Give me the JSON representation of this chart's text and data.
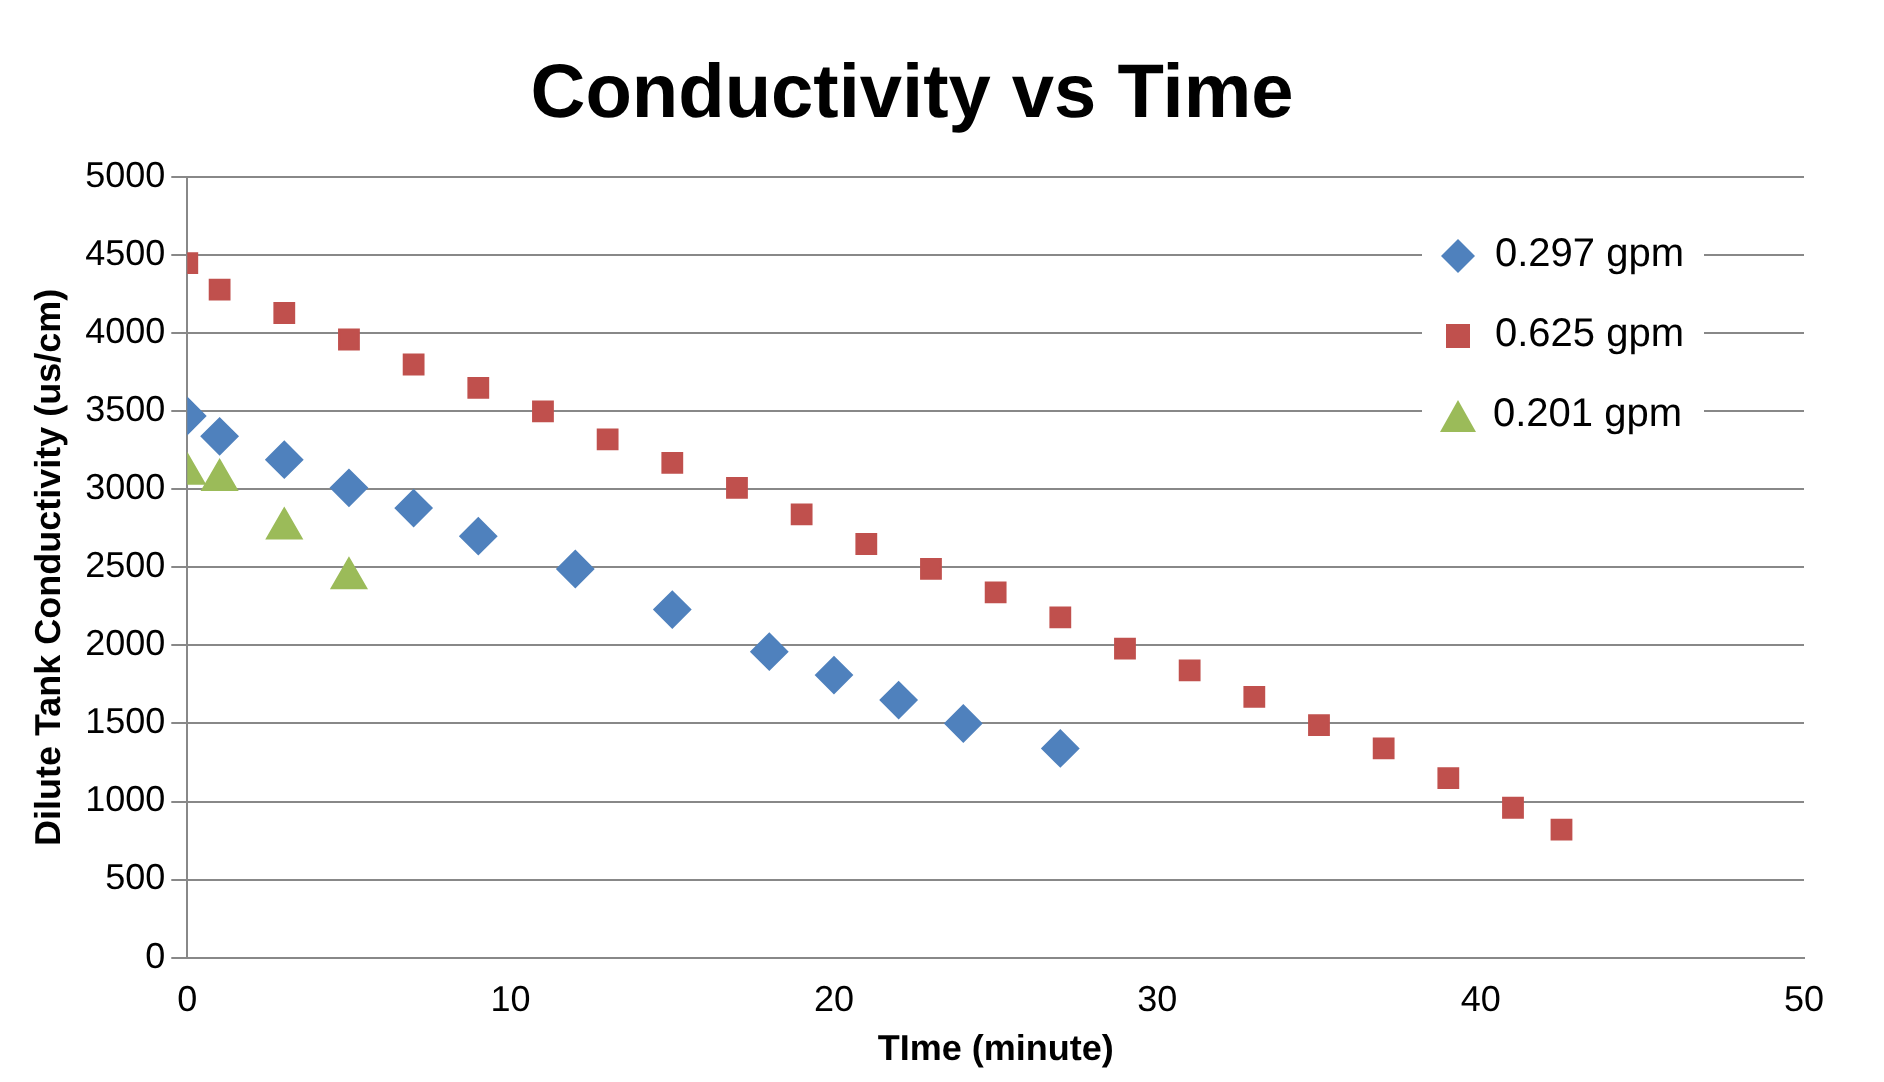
{
  "chart_data": {
    "type": "scatter",
    "title": "Conductivity vs Time",
    "xlabel": "TIme (minute)",
    "ylabel": "Dilute Tank Conductivity (us/cm)",
    "xlim": [
      0,
      50
    ],
    "xticks": [
      0,
      10,
      20,
      30,
      40,
      50
    ],
    "ylim": [
      0,
      5000
    ],
    "yticks": [
      0,
      500,
      1000,
      1500,
      2000,
      2500,
      3000,
      3500,
      4000,
      4500,
      5000
    ],
    "grid": "y",
    "legend": "top right",
    "series": [
      {
        "name": "0.297 gpm",
        "color": "#4f81bd",
        "marker": "diamond",
        "x": [
          0,
          1,
          3,
          5,
          7,
          9,
          12,
          15,
          18,
          20,
          22,
          24,
          27
        ],
        "values": [
          3470,
          3340,
          3190,
          3010,
          2880,
          2700,
          2490,
          2230,
          1960,
          1810,
          1650,
          1500,
          1340
        ]
      },
      {
        "name": "0.625 gpm",
        "color": "#c0504d",
        "marker": "square",
        "x": [
          0,
          1,
          3,
          5,
          7,
          9,
          11,
          13,
          15,
          17,
          19,
          21,
          23,
          25,
          27,
          29,
          31,
          33,
          35,
          37,
          39,
          41,
          42.5
        ],
        "values": [
          4450,
          4280,
          4130,
          3960,
          3800,
          3650,
          3500,
          3320,
          3170,
          3010,
          2840,
          2650,
          2490,
          2340,
          2180,
          1980,
          1840,
          1670,
          1490,
          1340,
          1150,
          960,
          820
        ]
      },
      {
        "name": "0.201 gpm",
        "color": "#9bbb59",
        "marker": "triangle",
        "x": [
          0,
          1,
          3,
          5
        ],
        "values": [
          3100,
          3060,
          2750,
          2430
        ]
      }
    ]
  }
}
